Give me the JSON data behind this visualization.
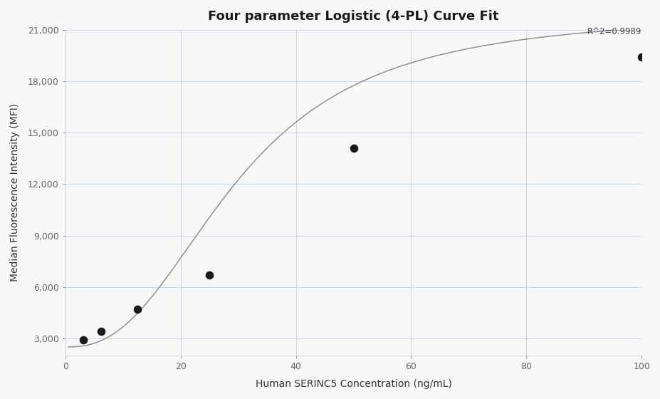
{
  "title": "Four parameter Logistic (4-PL) Curve Fit",
  "xlabel": "Human SERINC5 Concentration (ng/mL)",
  "ylabel": "Median Fluorescence Intensity (MFI)",
  "x_data": [
    3.125,
    6.25,
    12.5,
    25,
    50,
    100
  ],
  "y_data": [
    2900,
    3400,
    4700,
    6700,
    14100,
    19400
  ],
  "xlim": [
    0,
    100
  ],
  "ylim": [
    2000,
    21000
  ],
  "yticks": [
    3000,
    6000,
    9000,
    12000,
    15000,
    18000,
    21000
  ],
  "xticks": [
    0,
    20,
    40,
    60,
    80,
    100
  ],
  "r2_text": "R^2=0.9989",
  "r2_x": 100,
  "r2_y": 20600,
  "curve_color": "#888888",
  "dot_color": "#1a1a1a",
  "dot_size": 70,
  "background_color": "#f8f8f8",
  "grid_color": "#c8d4e8",
  "4pl_A": 2500,
  "4pl_D": 22000,
  "4pl_C": 30.0,
  "4pl_B": 2.5,
  "title_fontsize": 13,
  "label_fontsize": 10,
  "tick_fontsize": 9,
  "annotation_fontsize": 8.5
}
